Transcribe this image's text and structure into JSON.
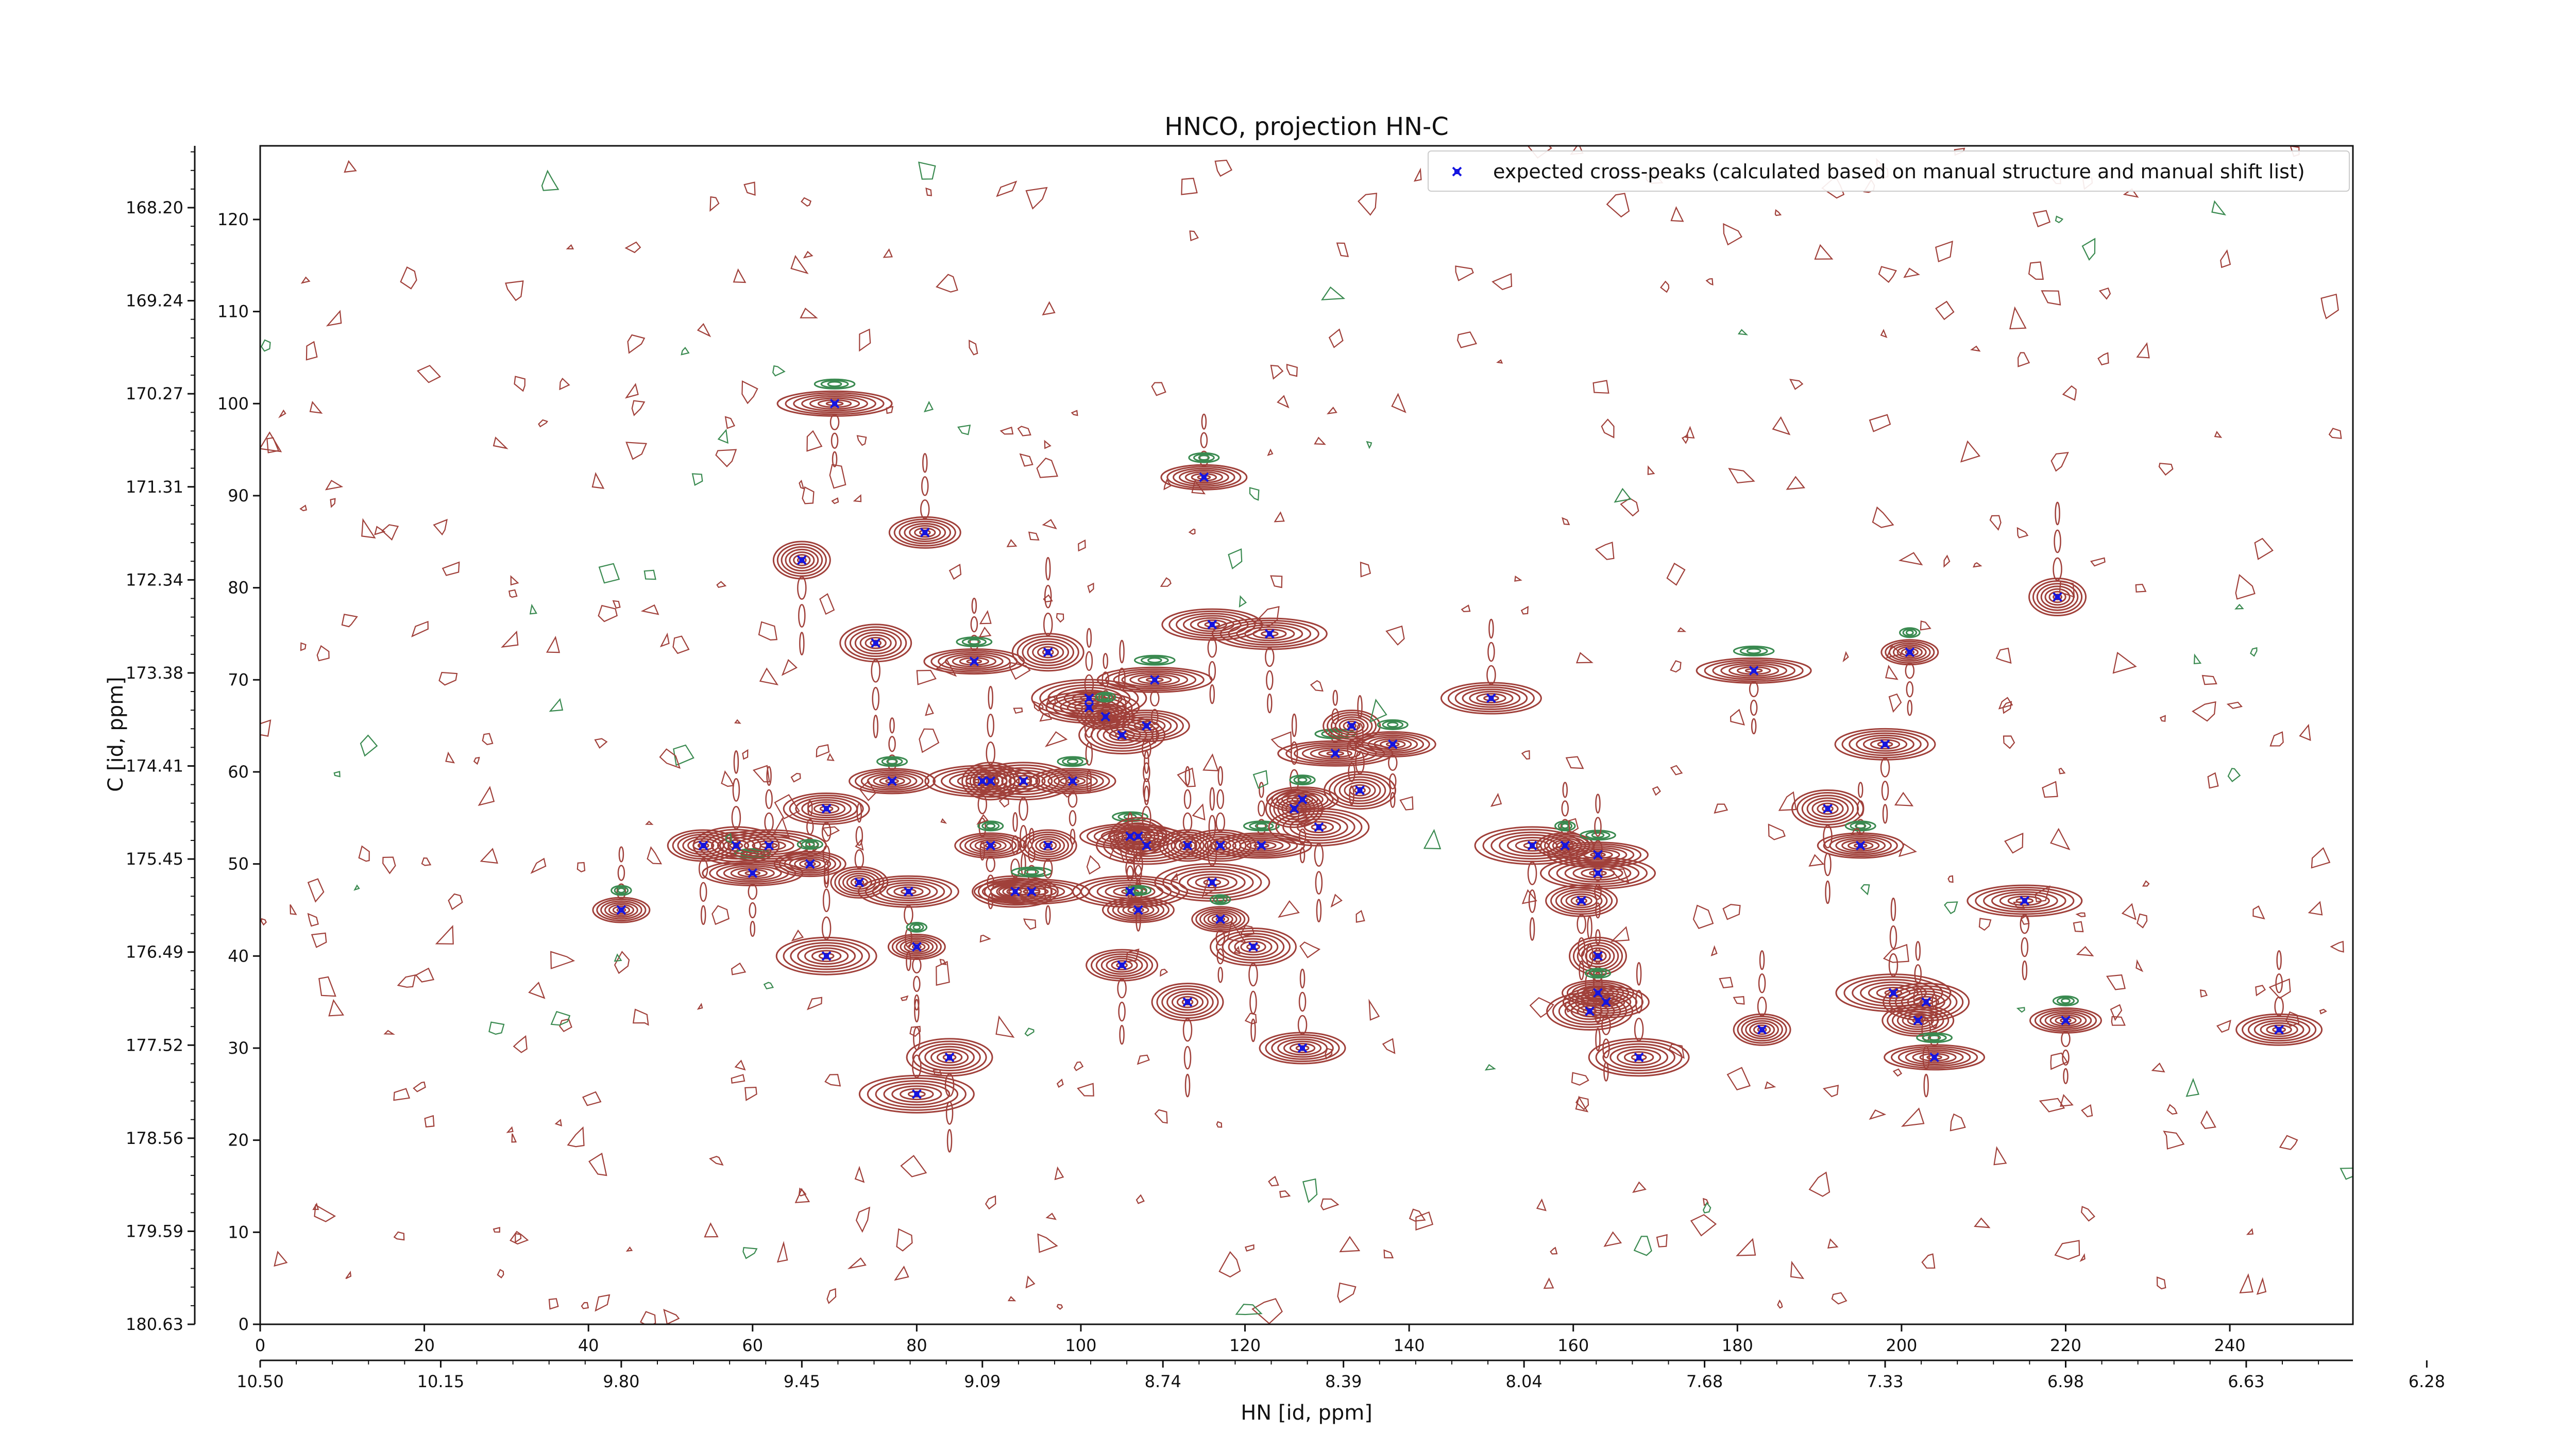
{
  "chart_data": {
    "type": "contour",
    "title": "HNCO, projection HN-C",
    "xlabel": "HN [id, ppm]",
    "ylabel": "C [id, ppm]",
    "x_index_range": [
      0,
      255
    ],
    "y_index_range": [
      0,
      128
    ],
    "x_index_ticks": [
      "0",
      "20",
      "40",
      "60",
      "80",
      "100",
      "120",
      "140",
      "160",
      "180",
      "200",
      "220",
      "240"
    ],
    "y_index_ticks": [
      "0",
      "10",
      "20",
      "30",
      "40",
      "50",
      "60",
      "70",
      "80",
      "90",
      "100",
      "110",
      "120"
    ],
    "x_ppm_ticks": [
      "10.50",
      "10.15",
      "9.80",
      "9.45",
      "9.09",
      "8.74",
      "8.39",
      "8.04",
      "7.68",
      "7.33",
      "6.98",
      "6.63",
      "6.28"
    ],
    "y_ppm_ticks": [
      "168.20",
      "169.24",
      "170.27",
      "171.31",
      "172.34",
      "173.38",
      "174.41",
      "175.45",
      "176.49",
      "177.52",
      "178.56",
      "179.59",
      "180.63"
    ],
    "legend": {
      "position": "top-right",
      "entries": [
        "expected cross-peaks (calculated based on manual structure and manual shift list)"
      ]
    },
    "colors": {
      "positive_contour": "#a0403a",
      "negative_contour": "#3a8a50",
      "expected_peak": "#1515e0"
    },
    "series": [
      {
        "name": "expected cross-peaks (calculated based on manual structure and manual shift list)",
        "points": [
          [
            44,
            45
          ],
          [
            54,
            52
          ],
          [
            58,
            52
          ],
          [
            60,
            49
          ],
          [
            62,
            52
          ],
          [
            66,
            83
          ],
          [
            67,
            50
          ],
          [
            69,
            56
          ],
          [
            69,
            40
          ],
          [
            70,
            100
          ],
          [
            73,
            48
          ],
          [
            75,
            74
          ],
          [
            77,
            59
          ],
          [
            79,
            47
          ],
          [
            80,
            25
          ],
          [
            80,
            41
          ],
          [
            81,
            86
          ],
          [
            84,
            29
          ],
          [
            87,
            72
          ],
          [
            88,
            59
          ],
          [
            89,
            59
          ],
          [
            89,
            52
          ],
          [
            92,
            47
          ],
          [
            93,
            59
          ],
          [
            94,
            47
          ],
          [
            96,
            52
          ],
          [
            96,
            73
          ],
          [
            99,
            59
          ],
          [
            101,
            67
          ],
          [
            101,
            68
          ],
          [
            103,
            66
          ],
          [
            105,
            39
          ],
          [
            105,
            64
          ],
          [
            106,
            53
          ],
          [
            106,
            47
          ],
          [
            107,
            53
          ],
          [
            107,
            45
          ],
          [
            108,
            65
          ],
          [
            108,
            52
          ],
          [
            109,
            70
          ],
          [
            113,
            52
          ],
          [
            113,
            35
          ],
          [
            115,
            92
          ],
          [
            116,
            76
          ],
          [
            116,
            48
          ],
          [
            117,
            44
          ],
          [
            117,
            52
          ],
          [
            121,
            41
          ],
          [
            122,
            52
          ],
          [
            123,
            75
          ],
          [
            126,
            56
          ],
          [
            127,
            57
          ],
          [
            127,
            30
          ],
          [
            129,
            54
          ],
          [
            131,
            62
          ],
          [
            133,
            65
          ],
          [
            134,
            58
          ],
          [
            138,
            63
          ],
          [
            150,
            68
          ],
          [
            155,
            52
          ],
          [
            159,
            52
          ],
          [
            161,
            46
          ],
          [
            162,
            34
          ],
          [
            163,
            51
          ],
          [
            163,
            49
          ],
          [
            163,
            40
          ],
          [
            163,
            36
          ],
          [
            164,
            35
          ],
          [
            168,
            29
          ],
          [
            182,
            71
          ],
          [
            183,
            32
          ],
          [
            191,
            56
          ],
          [
            195,
            52
          ],
          [
            198,
            63
          ],
          [
            199,
            36
          ],
          [
            201,
            73
          ],
          [
            202,
            33
          ],
          [
            203,
            35
          ],
          [
            204,
            29
          ],
          [
            215,
            46
          ],
          [
            219,
            79
          ],
          [
            220,
            33
          ],
          [
            246,
            32
          ]
        ]
      }
    ]
  }
}
